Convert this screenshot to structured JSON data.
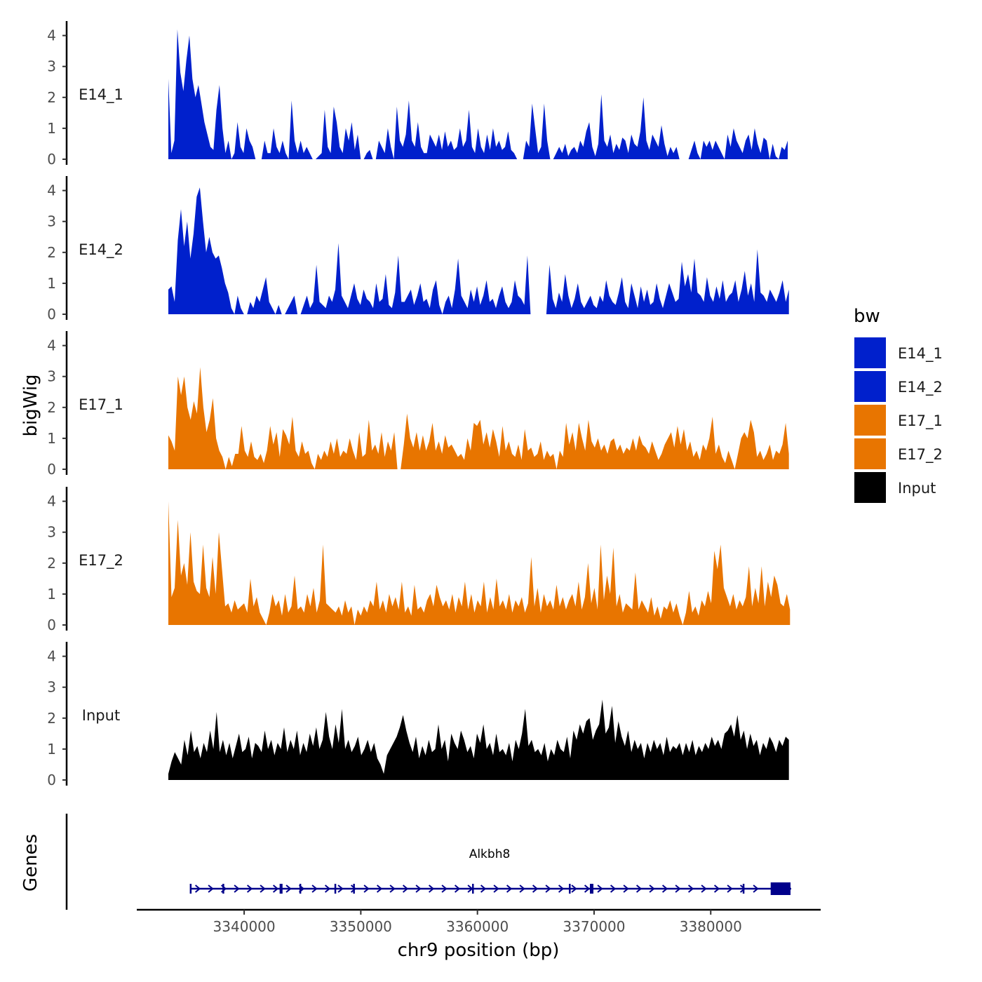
{
  "chart_data": {
    "type": "area",
    "ylabel": "bigWig",
    "xlabel": "chr9 position (bp)",
    "gene_track_label": "Genes",
    "ylim": [
      0,
      4.4
    ],
    "y_ticks": [
      "0",
      "1",
      "2",
      "3",
      "4"
    ],
    "x_range": [
      3333500,
      3386900
    ],
    "x_ticks": [
      {
        "value": 3340000,
        "label": "3340000"
      },
      {
        "value": 3350000,
        "label": "3350000"
      },
      {
        "value": 3360000,
        "label": "3360000"
      },
      {
        "value": 3370000,
        "label": "3370000"
      },
      {
        "value": 3380000,
        "label": "3380000"
      }
    ],
    "legend": {
      "title": "bw",
      "position": "right",
      "entries": [
        {
          "label": "E14_1",
          "color": "#0020cc"
        },
        {
          "label": "E14_2",
          "color": "#0020cc"
        },
        {
          "label": "E17_1",
          "color": "#e87500"
        },
        {
          "label": "E17_2",
          "color": "#e87500"
        },
        {
          "label": "Input",
          "color": "#000000"
        }
      ]
    },
    "series": [
      {
        "name": "E14_1",
        "color": "#0020cc",
        "x_start": 3333500,
        "x_end": 3386600,
        "values": [
          2.6,
          0.2,
          0.6,
          4.2,
          2.8,
          2.2,
          3.2,
          4.0,
          2.6,
          2.0,
          2.4,
          1.8,
          1.2,
          0.8,
          0.4,
          0.3,
          1.6,
          2.4,
          1.0,
          0.2,
          0.6,
          0,
          0.2,
          1.2,
          0.4,
          0.2,
          1.0,
          0.6,
          0.4,
          0,
          0,
          0,
          0.6,
          0.2,
          0.2,
          1.0,
          0.4,
          0.2,
          0.6,
          0.2,
          0,
          1.9,
          0.6,
          0.2,
          0.6,
          0.2,
          0.4,
          0.2,
          0,
          0,
          0.1,
          0.2,
          1.6,
          0.4,
          0.2,
          1.7,
          1.2,
          0.4,
          0.2,
          1.0,
          0.6,
          1.2,
          0.3,
          0.8,
          0,
          0,
          0.2,
          0.3,
          0,
          0,
          0.6,
          0.4,
          0.2,
          1.0,
          0.4,
          0,
          1.7,
          0.6,
          0.4,
          0.8,
          1.9,
          0.6,
          0.4,
          1.2,
          0.4,
          0.2,
          0.2,
          0.8,
          0.6,
          0.4,
          0.8,
          0.3,
          0.9,
          0.4,
          0.6,
          0.3,
          0.4,
          1.0,
          0.4,
          0.6,
          1.6,
          0.4,
          0.2,
          1.0,
          0.4,
          0.2,
          0.8,
          0.3,
          1.0,
          0.4,
          0.6,
          0.3,
          0.4,
          0.9,
          0.3,
          0.2,
          0,
          0,
          0,
          0.6,
          0.4,
          1.8,
          1.0,
          0.2,
          0.4,
          1.8,
          0.6,
          0,
          0,
          0.2,
          0.4,
          0.2,
          0.5,
          0.1,
          0.3,
          0.4,
          0.2,
          0.6,
          0.4,
          0.9,
          1.2,
          0.4,
          0.1,
          0.5,
          2.1,
          0.6,
          0.4,
          0.8,
          0.2,
          0.5,
          0.3,
          0.7,
          0.6,
          0.2,
          0.8,
          0.5,
          0.4,
          0.9,
          2.0,
          0.6,
          0.3,
          0.8,
          0.6,
          0.4,
          1.1,
          0.5,
          0.1,
          0.4,
          0.2,
          0.4,
          0,
          0,
          0,
          0,
          0.3,
          0.6,
          0.2,
          0,
          0.6,
          0.4,
          0.6,
          0.3,
          0.6,
          0.4,
          0.2,
          0,
          0.8,
          0.4,
          1.0,
          0.6,
          0.4,
          0.2,
          0.6,
          0.8,
          0.3,
          1.0,
          0.5,
          0.2,
          0.7,
          0.6,
          0,
          0.5,
          0.1,
          0,
          0.4,
          0.3,
          0.6
        ]
      },
      {
        "name": "E14_2",
        "color": "#0020cc",
        "x_start": 3333500,
        "x_end": 3386700,
        "values": [
          0.8,
          0.9,
          0.4,
          2.4,
          3.4,
          2.2,
          3.0,
          1.8,
          2.6,
          3.8,
          4.1,
          3.0,
          2.0,
          2.5,
          2.0,
          1.8,
          1.9,
          1.5,
          1.0,
          0.7,
          0.2,
          0,
          0.6,
          0.2,
          0,
          0,
          0.4,
          0.2,
          0.6,
          0.4,
          0.8,
          1.2,
          0.4,
          0.2,
          0,
          0.3,
          0,
          0,
          0.2,
          0.4,
          0.6,
          0,
          0,
          0.3,
          0.6,
          0.2,
          0.4,
          1.6,
          0.4,
          0.3,
          0.2,
          0.6,
          0.4,
          0.8,
          2.3,
          0.6,
          0.4,
          0.2,
          0.6,
          1.0,
          0.5,
          0.3,
          0.8,
          0.5,
          0.4,
          0.2,
          1.0,
          0.4,
          0.5,
          1.3,
          0.3,
          0.2,
          0.7,
          1.9,
          0.4,
          0.4,
          0.6,
          0.8,
          0.3,
          0.6,
          1.0,
          0.4,
          0.5,
          0.2,
          0.8,
          1.1,
          0.3,
          0,
          0.4,
          0.6,
          0.2,
          0.8,
          1.8,
          0.6,
          0.4,
          0.2,
          0.8,
          0.4,
          0.9,
          0.3,
          0.6,
          1.1,
          0.4,
          0.5,
          0.2,
          0.6,
          0.9,
          0.4,
          0.2,
          0.4,
          1.1,
          0.6,
          0.5,
          0.3,
          1.9,
          0,
          0,
          0,
          0,
          0,
          0,
          1.6,
          0.5,
          0.2,
          0.7,
          0.4,
          1.3,
          0.6,
          0.2,
          0.5,
          1.0,
          0.4,
          0.2,
          0.4,
          0.6,
          0.3,
          0.2,
          0.6,
          0.4,
          1.1,
          0.6,
          0.4,
          0.3,
          0.7,
          1.2,
          0.4,
          0.2,
          1.0,
          0.6,
          0.2,
          0.9,
          0.4,
          0.8,
          0.3,
          0.4,
          1.0,
          0.5,
          0.2,
          0.6,
          1.0,
          0.7,
          0.4,
          0.5,
          1.7,
          0.9,
          1.3,
          0.7,
          1.8,
          0.7,
          0.6,
          0.4,
          1.2,
          0.6,
          0.4,
          0.9,
          0.5,
          1.1,
          0.4,
          0.6,
          0.7,
          1.1,
          0.4,
          0.8,
          1.4,
          0.6,
          1.0,
          0.4,
          2.1,
          0.7,
          0.6,
          0.4,
          0.8,
          0.6,
          0.4,
          0.7,
          1.1,
          0.4,
          0.8
        ]
      },
      {
        "name": "E17_1",
        "color": "#e87500",
        "x_start": 3333500,
        "x_end": 3386700,
        "values": [
          1.1,
          0.9,
          0.6,
          3.0,
          2.4,
          3.0,
          2.0,
          1.6,
          2.2,
          1.8,
          3.3,
          2.0,
          1.2,
          1.6,
          2.3,
          1.0,
          0.6,
          0.4,
          0,
          0.4,
          0.1,
          0.5,
          0.5,
          1.4,
          0.6,
          0.4,
          0.9,
          0.4,
          0.3,
          0.5,
          0.2,
          0.6,
          1.4,
          0.8,
          1.2,
          0.4,
          1.3,
          1.1,
          0.8,
          1.7,
          0.6,
          0.4,
          0.9,
          0.5,
          0.6,
          0.2,
          0,
          0.5,
          0.3,
          0.6,
          0.4,
          0.9,
          0.5,
          1.0,
          0.4,
          0.6,
          0.5,
          1.0,
          0.6,
          0.3,
          1.2,
          0.4,
          0.5,
          1.6,
          0.6,
          0.8,
          0.5,
          1.2,
          0.4,
          0.9,
          0.6,
          1.2,
          0,
          0,
          0.8,
          1.8,
          1.0,
          0.7,
          1.2,
          0.6,
          1.1,
          0.6,
          0.9,
          1.5,
          0.6,
          0.9,
          0.5,
          1.1,
          0.7,
          0.8,
          0.6,
          0.4,
          0.5,
          0.3,
          1.0,
          0.6,
          1.5,
          1.4,
          1.6,
          0.8,
          1.2,
          0.7,
          1.3,
          0.9,
          0.4,
          1.4,
          0.6,
          0.9,
          0.5,
          0.4,
          0.8,
          0.3,
          1.3,
          0.6,
          0.7,
          0.4,
          0.5,
          0.9,
          0.3,
          0.6,
          0.4,
          0.5,
          0,
          0.6,
          0.4,
          1.5,
          0.8,
          1.2,
          0.6,
          1.5,
          1.0,
          0.6,
          1.6,
          0.9,
          0.7,
          1.0,
          0.6,
          0.8,
          0.5,
          0.9,
          1.0,
          0.6,
          0.8,
          0.5,
          0.7,
          0.6,
          1.0,
          0.6,
          1.1,
          0.8,
          0.7,
          0.5,
          0.9,
          0.6,
          0.3,
          0.5,
          0.8,
          1.0,
          1.2,
          0.7,
          1.4,
          0.8,
          1.3,
          0.6,
          0.9,
          0.4,
          0.6,
          0.3,
          0.8,
          0.6,
          1.0,
          1.7,
          0.5,
          0.8,
          0.4,
          0.2,
          0.6,
          0.3,
          0,
          0.5,
          1.0,
          1.2,
          1.0,
          1.6,
          1.2,
          0.4,
          0.6,
          0.3,
          0.5,
          0.8,
          0.3,
          0.6,
          0.5,
          0.8,
          1.5,
          0.5
        ]
      },
      {
        "name": "E17_2",
        "color": "#e87500",
        "x_start": 3333500,
        "x_end": 3386800,
        "values": [
          4.0,
          0.9,
          1.2,
          3.4,
          1.6,
          2.0,
          1.3,
          3.0,
          1.4,
          1.1,
          1.0,
          2.6,
          1.2,
          0.9,
          2.2,
          1.0,
          3.0,
          1.8,
          0.6,
          0.7,
          0.4,
          0.8,
          0.5,
          0.6,
          0.7,
          0.4,
          1.5,
          0.6,
          0.9,
          0.4,
          0.2,
          0,
          0.4,
          1.0,
          0.6,
          0.8,
          0.3,
          1.0,
          0.4,
          0.6,
          1.6,
          0.5,
          0.6,
          0.4,
          1.0,
          0.6,
          1.2,
          0.4,
          0.8,
          2.6,
          0.7,
          0.6,
          0.5,
          0.4,
          0.6,
          0.3,
          0.8,
          0.4,
          0.6,
          0,
          0.5,
          0.3,
          0.6,
          0.4,
          0.8,
          0.6,
          1.4,
          0.5,
          0.8,
          0.4,
          1.0,
          0.6,
          0.9,
          0.5,
          1.4,
          0.4,
          0.6,
          0.3,
          1.3,
          0.5,
          0.6,
          0.4,
          0.8,
          1.0,
          0.6,
          1.3,
          0.9,
          0.6,
          0.8,
          0.5,
          1.0,
          0.4,
          0.9,
          0.6,
          1.4,
          0.5,
          1.0,
          0.4,
          0.8,
          0.6,
          1.4,
          0.4,
          0.9,
          0.5,
          1.5,
          0.6,
          0.8,
          0.5,
          1.0,
          0.4,
          0.8,
          0.6,
          0.9,
          0.4,
          0.7,
          2.2,
          0.6,
          1.2,
          0.4,
          1.0,
          0.6,
          0.8,
          0.5,
          1.3,
          0.6,
          0.9,
          0.5,
          0.8,
          1.0,
          0.6,
          1.4,
          0.5,
          0.9,
          2.0,
          0.7,
          1.2,
          0.5,
          2.6,
          0.8,
          1.6,
          1.0,
          2.5,
          0.6,
          1.0,
          0.4,
          0.7,
          0.6,
          0.5,
          1.7,
          0.5,
          0.8,
          0.6,
          0.4,
          0.9,
          0.3,
          0.6,
          0.2,
          0.6,
          0.5,
          0.8,
          0.4,
          0.7,
          0.3,
          0,
          0.4,
          1.1,
          0.4,
          0.6,
          0.3,
          0.8,
          0.6,
          1.1,
          0.7,
          2.4,
          1.8,
          2.6,
          1.2,
          0.9,
          0.6,
          1.0,
          0.5,
          0.8,
          0.6,
          0.9,
          1.9,
          0.6,
          1.2,
          0.7,
          1.9,
          0.6,
          1.4,
          0.9,
          1.6,
          1.3,
          0.7,
          0.6,
          1.0,
          0.5
        ]
      },
      {
        "name": "Input",
        "color": "#000000",
        "x_start": 3333500,
        "x_end": 3386700,
        "values": [
          0.2,
          0.6,
          0.9,
          0.7,
          0.5,
          1.3,
          0.8,
          1.6,
          0.9,
          1.1,
          0.7,
          1.2,
          0.9,
          1.6,
          1.0,
          2.2,
          0.9,
          1.3,
          0.8,
          1.2,
          0.7,
          1.1,
          1.5,
          0.9,
          1.0,
          1.4,
          0.7,
          1.2,
          1.1,
          0.9,
          1.6,
          1.0,
          1.3,
          0.8,
          1.2,
          1.0,
          1.7,
          0.9,
          1.3,
          1.0,
          1.6,
          0.8,
          1.2,
          0.9,
          1.5,
          1.1,
          1.7,
          1.0,
          1.3,
          2.2,
          1.4,
          1.0,
          1.8,
          1.2,
          2.3,
          1.0,
          1.3,
          0.9,
          1.1,
          1.4,
          0.8,
          1.0,
          1.3,
          0.9,
          1.2,
          0.7,
          0.5,
          0.2,
          0.8,
          1.0,
          1.2,
          1.4,
          1.7,
          2.1,
          1.6,
          1.2,
          0.9,
          1.4,
          0.7,
          1.1,
          0.8,
          1.3,
          0.9,
          1.0,
          1.8,
          1.0,
          1.3,
          0.6,
          1.5,
          1.2,
          1.0,
          1.6,
          1.3,
          0.9,
          1.1,
          0.7,
          1.5,
          1.2,
          1.8,
          1.0,
          1.2,
          0.8,
          1.5,
          0.9,
          1.0,
          0.8,
          1.2,
          0.6,
          1.3,
          1.0,
          1.5,
          2.3,
          1.1,
          1.3,
          0.9,
          1.0,
          0.8,
          1.2,
          0.6,
          1.0,
          0.8,
          1.3,
          1.0,
          0.9,
          1.4,
          0.7,
          1.6,
          1.3,
          1.8,
          1.5,
          1.9,
          2.0,
          1.3,
          1.6,
          1.8,
          2.6,
          1.5,
          1.7,
          2.4,
          1.2,
          1.9,
          1.4,
          1.1,
          1.6,
          0.9,
          1.3,
          1.0,
          1.2,
          0.7,
          1.2,
          0.9,
          1.3,
          1.0,
          1.2,
          0.8,
          1.4,
          0.9,
          1.1,
          1.0,
          1.2,
          0.8,
          1.2,
          0.9,
          1.3,
          0.8,
          1.1,
          0.9,
          1.2,
          1.0,
          1.4,
          1.1,
          1.3,
          1.0,
          1.5,
          1.6,
          1.8,
          1.4,
          2.1,
          1.3,
          1.6,
          1.0,
          1.5,
          1.1,
          1.3,
          0.8,
          1.2,
          1.0,
          1.4,
          1.2,
          0.9,
          1.3,
          1.1,
          1.4,
          1.3
        ]
      }
    ],
    "gene": {
      "name": "Alkbh8",
      "color": "#00008b",
      "start": 3335400,
      "end": 3386900,
      "strand": "+",
      "exons": [
        {
          "start": 3335400,
          "end": 3335450
        },
        {
          "start": 3338200,
          "end": 3338260
        },
        {
          "start": 3343100,
          "end": 3343350
        },
        {
          "start": 3344800,
          "end": 3344900
        },
        {
          "start": 3347800,
          "end": 3347850
        },
        {
          "start": 3349400,
          "end": 3349460
        },
        {
          "start": 3359600,
          "end": 3359700
        },
        {
          "start": 3367900,
          "end": 3368000
        },
        {
          "start": 3369700,
          "end": 3370000
        },
        {
          "start": 3382800,
          "end": 3382860
        },
        {
          "start": 3385200,
          "end": 3386900
        }
      ]
    }
  }
}
